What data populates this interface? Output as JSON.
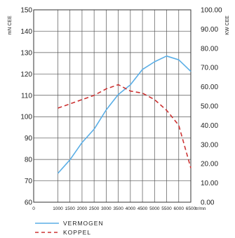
{
  "chart_data": {
    "type": "line",
    "left_axis": {
      "label": "mN CEE",
      "ticks": [
        60,
        70,
        80,
        90,
        100,
        110,
        120,
        130,
        140,
        150
      ],
      "range": [
        60,
        150
      ]
    },
    "right_axis": {
      "label": "KW CEE",
      "ticks": [
        "0.00",
        "10.00",
        "20.00",
        "30.00",
        "40.00",
        "50.00",
        "60.00",
        "70.00",
        "80.00",
        "90.00",
        "100.00"
      ],
      "range": [
        0,
        100
      ]
    },
    "x_ticks": [
      "0",
      "1000",
      "1500",
      "2000",
      "2500",
      "3000",
      "3500",
      "4000",
      "4500",
      "5000",
      "5500",
      "6000",
      "6500",
      "tr/mn"
    ],
    "x_range": [
      0,
      6500
    ],
    "grid": true,
    "legend": "bottom",
    "series": [
      {
        "name": "VERMOGEN",
        "axis": "right",
        "color": "#5aaee6",
        "dash": "solid",
        "points": [
          [
            1000,
            15
          ],
          [
            1500,
            22
          ],
          [
            2000,
            31
          ],
          [
            2500,
            38
          ],
          [
            3000,
            48
          ],
          [
            3500,
            56
          ],
          [
            4000,
            61
          ],
          [
            4500,
            69
          ],
          [
            5000,
            73
          ],
          [
            5500,
            76
          ],
          [
            6000,
            74
          ],
          [
            6500,
            68
          ]
        ]
      },
      {
        "name": "KOPPEL",
        "axis": "left",
        "color": "#cc3333",
        "dash": "dashed",
        "points": [
          [
            1000,
            104
          ],
          [
            1500,
            106
          ],
          [
            2000,
            108
          ],
          [
            2500,
            110
          ],
          [
            3000,
            113
          ],
          [
            3500,
            115
          ],
          [
            4000,
            112
          ],
          [
            4500,
            111
          ],
          [
            5000,
            108
          ],
          [
            5500,
            103
          ],
          [
            6000,
            96
          ],
          [
            6500,
            76
          ]
        ]
      }
    ]
  }
}
